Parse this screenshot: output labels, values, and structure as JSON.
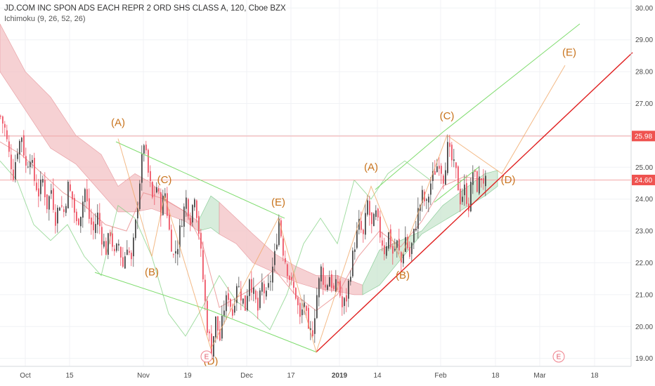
{
  "header": {
    "title": "JD.COM INC SPON ADS EACH REPR 2 ORD SHS CLASS A, 120, Cboe BZX",
    "indicator": "Ichimoku (9, 26, 52, 26)"
  },
  "colors": {
    "up": "#53b987",
    "down": "#eb4d5c",
    "candle_body_up": "#4a4a4a",
    "candle_body_down": "#ee5566",
    "cloud_bear": "#f3c1c4",
    "cloud_bull": "#c9e5cf",
    "green_line": "#7fdc6e",
    "red_line": "#e02020",
    "orange": "#f0a868",
    "wave_label": "#c8731c",
    "price_line": "#f2a9a9",
    "price_badge": "#ef5350"
  },
  "chart_data": {
    "type": "candlestick",
    "y_axis": {
      "min": 18.75,
      "max": 30.25,
      "position": "right",
      "ticks": [
        "19.00",
        "20.00",
        "21.00",
        "22.00",
        "23.00",
        "24.00",
        "25.00",
        "26.00",
        "27.00",
        "28.00",
        "29.00",
        "30.00"
      ]
    },
    "x_axis": {
      "ticks": [
        {
          "label": "Oct",
          "x": 12,
          "bold": false
        },
        {
          "label": "15",
          "x": 33,
          "bold": false
        },
        {
          "label": "Nov",
          "x": 68,
          "bold": false
        },
        {
          "label": "19",
          "x": 89,
          "bold": false
        },
        {
          "label": "Dec",
          "x": 117,
          "bold": false
        },
        {
          "label": "17",
          "x": 138,
          "bold": false
        },
        {
          "label": "2019",
          "x": 161,
          "bold": true
        },
        {
          "label": "14",
          "x": 179,
          "bold": false
        },
        {
          "label": "Feb",
          "x": 209,
          "bold": false
        },
        {
          "label": "18",
          "x": 235,
          "bold": false
        },
        {
          "label": "Mar",
          "x": 256,
          "bold": false
        },
        {
          "label": "18",
          "x": 282,
          "bold": false
        }
      ]
    },
    "price_lines": [
      {
        "value": 25.98,
        "label": "25.98"
      },
      {
        "value": 24.6,
        "label": "24.60"
      }
    ],
    "close_path": [
      [
        0,
        26.6
      ],
      [
        2,
        26.2
      ],
      [
        4,
        25.4
      ],
      [
        6,
        24.8
      ],
      [
        8,
        25.6
      ],
      [
        10,
        26.0
      ],
      [
        12,
        25.0
      ],
      [
        14,
        25.4
      ],
      [
        16,
        24.6
      ],
      [
        18,
        24.2
      ],
      [
        20,
        24.6
      ],
      [
        22,
        23.8
      ],
      [
        24,
        24.3
      ],
      [
        26,
        23.4
      ],
      [
        28,
        23.9
      ],
      [
        30,
        23.6
      ],
      [
        32,
        24.4
      ],
      [
        34,
        24.0
      ],
      [
        36,
        23.2
      ],
      [
        38,
        23.6
      ],
      [
        40,
        24.3
      ],
      [
        42,
        23.4
      ],
      [
        44,
        23.0
      ],
      [
        46,
        23.5
      ],
      [
        48,
        22.8
      ],
      [
        50,
        22.4
      ],
      [
        52,
        23.0
      ],
      [
        54,
        22.2
      ],
      [
        56,
        22.6
      ],
      [
        58,
        21.9
      ],
      [
        60,
        22.6
      ],
      [
        62,
        22.0
      ],
      [
        64,
        23.2
      ],
      [
        66,
        24.6
      ],
      [
        68,
        25.8
      ],
      [
        70,
        24.8
      ],
      [
        72,
        24.0
      ],
      [
        74,
        24.4
      ],
      [
        76,
        23.7
      ],
      [
        78,
        24.2
      ],
      [
        80,
        23.0
      ],
      [
        82,
        22.2
      ],
      [
        84,
        22.6
      ],
      [
        86,
        23.4
      ],
      [
        88,
        24.0
      ],
      [
        90,
        23.4
      ],
      [
        92,
        24.2
      ],
      [
        94,
        23.0
      ],
      [
        96,
        21.5
      ],
      [
        98,
        20.0
      ],
      [
        100,
        19.3
      ],
      [
        102,
        20.2
      ],
      [
        104,
        19.6
      ],
      [
        106,
        20.6
      ],
      [
        108,
        21.0
      ],
      [
        110,
        20.4
      ],
      [
        112,
        21.4
      ],
      [
        114,
        21.0
      ],
      [
        116,
        20.6
      ],
      [
        118,
        21.6
      ],
      [
        120,
        21.0
      ],
      [
        122,
        20.5
      ],
      [
        124,
        21.3
      ],
      [
        126,
        20.9
      ],
      [
        128,
        21.5
      ],
      [
        130,
        22.2
      ],
      [
        132,
        23.4
      ],
      [
        134,
        22.4
      ],
      [
        136,
        21.8
      ],
      [
        138,
        21.3
      ],
      [
        140,
        21.0
      ],
      [
        142,
        20.2
      ],
      [
        144,
        20.8
      ],
      [
        146,
        19.7
      ],
      [
        148,
        19.9
      ],
      [
        150,
        21.0
      ],
      [
        152,
        21.8
      ],
      [
        154,
        21.2
      ],
      [
        156,
        21.6
      ],
      [
        158,
        21.1
      ],
      [
        160,
        21.4
      ],
      [
        162,
        20.6
      ],
      [
        164,
        20.9
      ],
      [
        166,
        21.8
      ],
      [
        168,
        22.6
      ],
      [
        170,
        23.2
      ],
      [
        172,
        22.8
      ],
      [
        174,
        23.9
      ],
      [
        176,
        23.1
      ],
      [
        178,
        23.5
      ],
      [
        180,
        22.9
      ],
      [
        182,
        22.4
      ],
      [
        184,
        22.9
      ],
      [
        186,
        22.3
      ],
      [
        188,
        22.6
      ],
      [
        190,
        22.0
      ],
      [
        192,
        22.8
      ],
      [
        194,
        22.2
      ],
      [
        196,
        22.9
      ],
      [
        198,
        23.6
      ],
      [
        200,
        24.1
      ],
      [
        202,
        23.8
      ],
      [
        204,
        24.5
      ],
      [
        206,
        24.9
      ],
      [
        208,
        25.2
      ],
      [
        210,
        24.7
      ],
      [
        212,
        25.6
      ],
      [
        214,
        25.2
      ],
      [
        216,
        24.8
      ],
      [
        218,
        24.0
      ],
      [
        220,
        24.3
      ],
      [
        222,
        23.8
      ],
      [
        224,
        24.9
      ],
      [
        226,
        24.4
      ],
      [
        228,
        24.7
      ],
      [
        230,
        24.5
      ]
    ],
    "ichimoku": {
      "cloud_segments": [
        {
          "kind": "bear",
          "start_x": 0,
          "upper": [
            [
              0,
              29.5
            ],
            [
              12,
              28.0
            ],
            [
              24,
              27.2
            ],
            [
              36,
              26.0
            ],
            [
              48,
              25.4
            ],
            [
              56,
              24.4
            ],
            [
              64,
              24.8
            ],
            [
              72,
              24.5
            ],
            [
              80,
              23.9
            ],
            [
              88,
              23.6
            ],
            [
              94,
              23.3
            ]
          ],
          "lower": [
            [
              0,
              28.0
            ],
            [
              12,
              26.8
            ],
            [
              24,
              25.6
            ],
            [
              36,
              25.1
            ],
            [
              48,
              24.2
            ],
            [
              56,
              23.6
            ],
            [
              64,
              23.6
            ],
            [
              72,
              23.7
            ],
            [
              80,
              23.5
            ],
            [
              88,
              23.3
            ],
            [
              94,
              23.0
            ]
          ]
        },
        {
          "kind": "bull",
          "start_x": 94,
          "upper": [
            [
              94,
              23.3
            ],
            [
              100,
              24.1
            ],
            [
              104,
              23.9
            ]
          ],
          "lower": [
            [
              94,
              23.0
            ],
            [
              100,
              23.1
            ],
            [
              104,
              22.9
            ]
          ]
        },
        {
          "kind": "bear",
          "start_x": 104,
          "upper": [
            [
              104,
              23.9
            ],
            [
              112,
              23.4
            ],
            [
              120,
              22.9
            ],
            [
              130,
              22.3
            ],
            [
              140,
              21.9
            ],
            [
              150,
              21.6
            ],
            [
              160,
              21.6
            ],
            [
              168,
              21.4
            ],
            [
              172,
              21.3
            ]
          ],
          "lower": [
            [
              104,
              22.9
            ],
            [
              112,
              22.6
            ],
            [
              120,
              22.0
            ],
            [
              130,
              21.7
            ],
            [
              140,
              21.4
            ],
            [
              150,
              21.2
            ],
            [
              160,
              21.1
            ],
            [
              168,
              21.0
            ],
            [
              172,
              21.0
            ]
          ]
        },
        {
          "kind": "bull",
          "start_x": 172,
          "upper": [
            [
              172,
              21.3
            ],
            [
              180,
              22.4
            ],
            [
              190,
              22.7
            ],
            [
              200,
              23.0
            ],
            [
              210,
              23.8
            ],
            [
              220,
              24.3
            ],
            [
              230,
              24.8
            ],
            [
              236,
              24.9
            ]
          ],
          "lower": [
            [
              172,
              21.0
            ],
            [
              180,
              21.3
            ],
            [
              190,
              22.1
            ],
            [
              200,
              22.9
            ],
            [
              210,
              23.3
            ],
            [
              220,
              23.7
            ],
            [
              230,
              24.1
            ],
            [
              236,
              24.4
            ]
          ]
        }
      ],
      "conversion": [
        [
          0,
          25.8
        ],
        [
          10,
          25.4
        ],
        [
          20,
          24.8
        ],
        [
          30,
          24.2
        ],
        [
          40,
          23.8
        ],
        [
          50,
          23.2
        ],
        [
          60,
          23.0
        ],
        [
          68,
          24.2
        ],
        [
          78,
          24.0
        ],
        [
          88,
          23.6
        ],
        [
          96,
          22.6
        ],
        [
          104,
          20.6
        ],
        [
          112,
          20.9
        ],
        [
          120,
          21.2
        ],
        [
          130,
          21.8
        ],
        [
          140,
          21.0
        ],
        [
          150,
          20.5
        ],
        [
          160,
          21.0
        ],
        [
          170,
          22.2
        ],
        [
          180,
          23.0
        ],
        [
          190,
          22.5
        ],
        [
          200,
          23.3
        ],
        [
          210,
          24.4
        ],
        [
          220,
          24.7
        ],
        [
          230,
          24.6
        ]
      ],
      "lagging": [
        [
          0,
          25.2
        ],
        [
          8,
          24.6
        ],
        [
          16,
          23.2
        ],
        [
          24,
          22.7
        ],
        [
          32,
          23.2
        ],
        [
          40,
          22.2
        ],
        [
          48,
          21.6
        ],
        [
          56,
          23.8
        ],
        [
          64,
          23.4
        ],
        [
          72,
          22.2
        ],
        [
          80,
          20.4
        ],
        [
          88,
          19.7
        ],
        [
          96,
          20.6
        ],
        [
          104,
          21.6
        ],
        [
          112,
          20.8
        ],
        [
          120,
          20.4
        ],
        [
          128,
          19.9
        ],
        [
          136,
          21.0
        ],
        [
          144,
          22.6
        ],
        [
          152,
          23.4
        ],
        [
          160,
          22.6
        ],
        [
          168,
          24.6
        ],
        [
          176,
          24.0
        ],
        [
          184,
          24.8
        ],
        [
          192,
          25.2
        ],
        [
          200,
          24.8
        ],
        [
          204,
          24.6
        ]
      ]
    },
    "wave_lines": [
      {
        "color": "green",
        "points": [
          [
            55,
            25.8
          ],
          [
            135,
            23.4
          ]
        ]
      },
      {
        "color": "green",
        "points": [
          [
            45,
            21.7
          ],
          [
            100,
            20.5
          ],
          [
            150,
            19.2
          ]
        ]
      },
      {
        "color": "green",
        "points": [
          [
            178,
            24.3
          ],
          [
            210,
            26.1
          ],
          [
            275,
            29.5
          ]
        ]
      },
      {
        "color": "green",
        "points": [
          [
            206,
            23.9
          ],
          [
            227,
            25.0
          ]
        ]
      },
      {
        "color": "red",
        "points": [
          [
            150,
            19.2
          ],
          [
            300,
            28.6
          ]
        ]
      },
      {
        "color": "orange",
        "points": [
          [
            56,
            25.9
          ],
          [
            72,
            22.2
          ],
          [
            78,
            24.1
          ],
          [
            100,
            19.3
          ],
          [
            132,
            23.4
          ],
          [
            150,
            19.2
          ],
          [
            176,
            24.4
          ],
          [
            190,
            22.1
          ],
          [
            212,
            26.0
          ],
          [
            238,
            24.8
          ],
          [
            268,
            28.2
          ]
        ]
      }
    ],
    "wave_labels": [
      {
        "text": "(A)",
        "x": 56,
        "y": 26.3
      },
      {
        "text": "(B)",
        "x": 72,
        "y": 21.6
      },
      {
        "text": "(C)",
        "x": 78,
        "y": 24.5
      },
      {
        "text": "(D)",
        "x": 100,
        "y": 18.8
      },
      {
        "text": "(E)",
        "x": 132,
        "y": 23.8
      },
      {
        "text": "(A)",
        "x": 176,
        "y": 24.9
      },
      {
        "text": "(B)",
        "x": 191,
        "y": 21.5
      },
      {
        "text": "(C)",
        "x": 212,
        "y": 26.5
      },
      {
        "text": "(D)",
        "x": 241,
        "y": 24.5
      },
      {
        "text": "(E)",
        "x": 270,
        "y": 28.5
      }
    ],
    "event_markers": [
      {
        "text": "E",
        "x": 98
      },
      {
        "text": "E",
        "x": 265
      }
    ]
  }
}
